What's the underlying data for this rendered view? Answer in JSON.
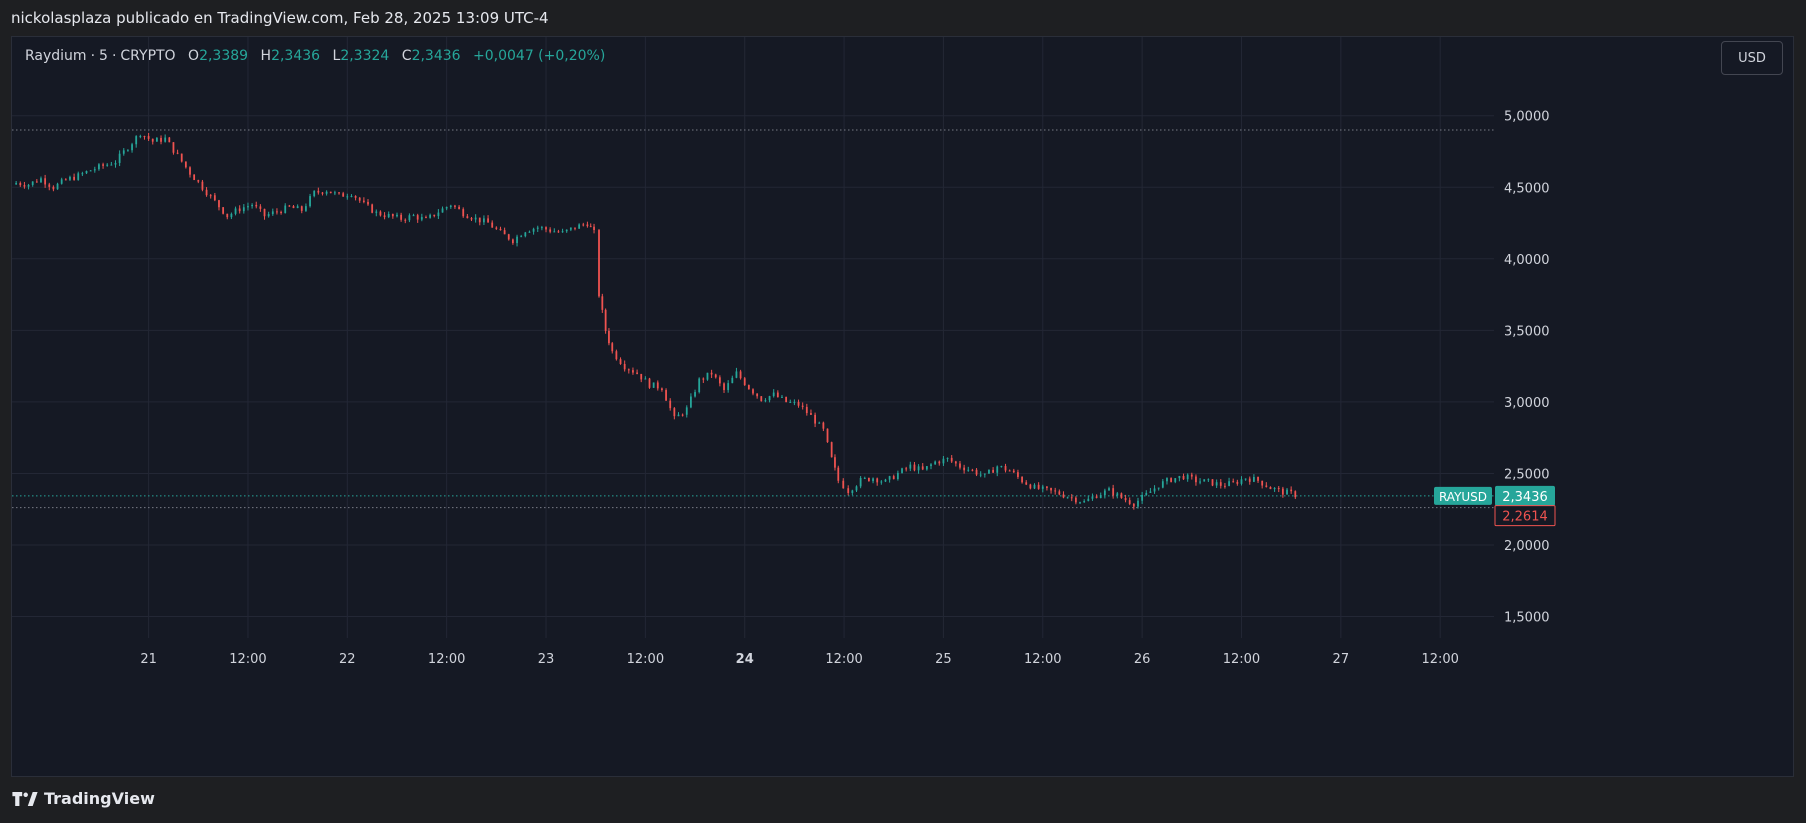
{
  "header": {
    "text": "nickolasplaza publicado en TradingView.com, Feb 28, 2025 13:09 UTC-4"
  },
  "legend": {
    "symbol": "Raydium",
    "interval": "5",
    "exchange": "CRYPTO",
    "open_key": "O",
    "open": "2,3389",
    "high_key": "H",
    "high": "2,3436",
    "low_key": "L",
    "low": "2,3324",
    "close_key": "C",
    "close": "2,3436",
    "change": "+0,0047 (+0,20%)"
  },
  "currency_button": "USD",
  "footer": {
    "brand": "TradingView",
    "logo_icon": "tradingview-logo-icon"
  },
  "colors": {
    "background": "#1e1f22",
    "plot_background": "#151924",
    "grid": "#232735",
    "up": "#26a69a",
    "down": "#ef5350",
    "text": "#d1d4dc"
  },
  "chart_data": {
    "type": "line",
    "title": "Raydium · 5 · CRYPTO",
    "y_unit": "USD",
    "ylim": [
      1.35,
      5.55
    ],
    "y_ticks": [
      {
        "value": 5.0,
        "label": "5,0000"
      },
      {
        "value": 4.5,
        "label": "4,5000"
      },
      {
        "value": 4.0,
        "label": "4,0000"
      },
      {
        "value": 3.5,
        "label": "3,5000"
      },
      {
        "value": 3.0,
        "label": "3,0000"
      },
      {
        "value": 2.5,
        "label": "2,5000"
      },
      {
        "value": 2.0,
        "label": "2,0000"
      },
      {
        "value": 1.5,
        "label": "1,5000"
      }
    ],
    "x_unit": "hours since Feb 20 00:00",
    "xlim": [
      7.5,
      186.5
    ],
    "x_ticks": [
      {
        "hour": 24,
        "label": "21",
        "bold": false
      },
      {
        "hour": 36,
        "label": "12:00",
        "bold": false
      },
      {
        "hour": 48,
        "label": "22",
        "bold": false
      },
      {
        "hour": 60,
        "label": "12:00",
        "bold": false
      },
      {
        "hour": 72,
        "label": "23",
        "bold": false
      },
      {
        "hour": 84,
        "label": "12:00",
        "bold": false
      },
      {
        "hour": 96,
        "label": "24",
        "bold": true
      },
      {
        "hour": 108,
        "label": "12:00",
        "bold": false
      },
      {
        "hour": 120,
        "label": "25",
        "bold": false
      },
      {
        "hour": 132,
        "label": "12:00",
        "bold": false
      },
      {
        "hour": 144,
        "label": "26",
        "bold": false
      },
      {
        "hour": 156,
        "label": "12:00",
        "bold": false
      },
      {
        "hour": 168,
        "label": "27",
        "bold": false
      },
      {
        "hour": 180,
        "label": "12:00",
        "bold": false
      }
    ],
    "series": [
      {
        "name": "RAYUSD",
        "points": [
          [
            8,
            4.53
          ],
          [
            9.5,
            4.52
          ],
          [
            11,
            4.56
          ],
          [
            12.5,
            4.5
          ],
          [
            14,
            4.55
          ],
          [
            15.5,
            4.58
          ],
          [
            17,
            4.62
          ],
          [
            18.5,
            4.65
          ],
          [
            20,
            4.68
          ],
          [
            21.5,
            4.78
          ],
          [
            23,
            4.88
          ],
          [
            24.5,
            4.82
          ],
          [
            26,
            4.84
          ],
          [
            27.5,
            4.72
          ],
          [
            29,
            4.6
          ],
          [
            30.5,
            4.5
          ],
          [
            32,
            4.4
          ],
          [
            33.5,
            4.3
          ],
          [
            35,
            4.35
          ],
          [
            36.5,
            4.38
          ],
          [
            38,
            4.3
          ],
          [
            39.5,
            4.33
          ],
          [
            41,
            4.36
          ],
          [
            42.5,
            4.34
          ],
          [
            44,
            4.46
          ],
          [
            45.5,
            4.48
          ],
          [
            47,
            4.44
          ],
          [
            48.5,
            4.46
          ],
          [
            50,
            4.38
          ],
          [
            51.5,
            4.32
          ],
          [
            53,
            4.3
          ],
          [
            54.5,
            4.28
          ],
          [
            56,
            4.3
          ],
          [
            57.5,
            4.27
          ],
          [
            59,
            4.33
          ],
          [
            60.5,
            4.38
          ],
          [
            62,
            4.32
          ],
          [
            63.5,
            4.28
          ],
          [
            65,
            4.25
          ],
          [
            66.5,
            4.18
          ],
          [
            68,
            4.13
          ],
          [
            69.5,
            4.2
          ],
          [
            71,
            4.22
          ],
          [
            72.5,
            4.2
          ],
          [
            74,
            4.18
          ],
          [
            75.5,
            4.22
          ],
          [
            77,
            4.25
          ],
          [
            77.8,
            4.18
          ],
          [
            78.4,
            3.75
          ],
          [
            79.2,
            3.5
          ],
          [
            80,
            3.35
          ],
          [
            81.5,
            3.25
          ],
          [
            83,
            3.2
          ],
          [
            84.5,
            3.12
          ],
          [
            86,
            3.1
          ],
          [
            87.5,
            2.88
          ],
          [
            89,
            2.95
          ],
          [
            90.5,
            3.15
          ],
          [
            92,
            3.2
          ],
          [
            93.5,
            3.08
          ],
          [
            95,
            3.2
          ],
          [
            96.5,
            3.1
          ],
          [
            98,
            3.02
          ],
          [
            99.5,
            3.05
          ],
          [
            101,
            3.0
          ],
          [
            102.5,
            2.98
          ],
          [
            104,
            2.9
          ],
          [
            105.5,
            2.8
          ],
          [
            106.5,
            2.6
          ],
          [
            107.3,
            2.45
          ],
          [
            108.5,
            2.38
          ],
          [
            110,
            2.45
          ],
          [
            111.5,
            2.47
          ],
          [
            113,
            2.44
          ],
          [
            114.5,
            2.5
          ],
          [
            116,
            2.55
          ],
          [
            117.5,
            2.52
          ],
          [
            119,
            2.58
          ],
          [
            120.5,
            2.6
          ],
          [
            122,
            2.55
          ],
          [
            123.5,
            2.52
          ],
          [
            125,
            2.48
          ],
          [
            126.5,
            2.55
          ],
          [
            128,
            2.52
          ],
          [
            129.5,
            2.45
          ],
          [
            131,
            2.4
          ],
          [
            132.5,
            2.38
          ],
          [
            134,
            2.36
          ],
          [
            135.5,
            2.33
          ],
          [
            137,
            2.3
          ],
          [
            138.5,
            2.35
          ],
          [
            140,
            2.38
          ],
          [
            141.5,
            2.33
          ],
          [
            143,
            2.29
          ],
          [
            144.5,
            2.35
          ],
          [
            146,
            2.42
          ],
          [
            147.5,
            2.46
          ],
          [
            149,
            2.48
          ],
          [
            150.5,
            2.45
          ],
          [
            152,
            2.44
          ],
          [
            153.5,
            2.42
          ],
          [
            155,
            2.43
          ],
          [
            156.5,
            2.47
          ],
          [
            158,
            2.45
          ],
          [
            159.5,
            2.4
          ],
          [
            161,
            2.37
          ],
          [
            162,
            2.36
          ],
          [
            163,
            2.34
          ]
        ]
      }
    ],
    "price_lines": [
      {
        "value": 4.9,
        "style": "dotted",
        "color": "#787b86"
      },
      {
        "value": 2.3436,
        "style": "dotted",
        "color": "#26a69a"
      },
      {
        "value": 2.2614,
        "style": "dotted",
        "color": "#787b86"
      }
    ],
    "price_labels": [
      {
        "text": "RAYUSD",
        "value": 2.3436,
        "color": "#26a69a"
      },
      {
        "text": "2,3436",
        "value": 2.3436,
        "color": "#26a69a",
        "kind": "filled"
      },
      {
        "text": "2,2614",
        "value": 2.2614,
        "color": "#ef5350",
        "kind": "outlined"
      }
    ],
    "grid": true
  }
}
